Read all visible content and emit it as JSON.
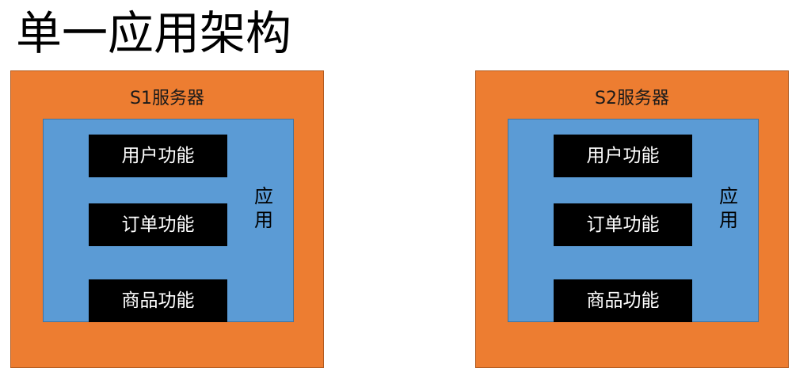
{
  "title": "单一应用架构",
  "servers": [
    {
      "label": "S1服务器",
      "app_label": [
        "应",
        "用"
      ],
      "functions": [
        "用户功能",
        "订单功能",
        "商品功能"
      ]
    },
    {
      "label": "S2服务器",
      "app_label": [
        "应",
        "用"
      ],
      "functions": [
        "用户功能",
        "订单功能",
        "商品功能"
      ]
    }
  ],
  "colors": {
    "server_fill": "#ed7d31",
    "app_fill": "#5b9bd5",
    "function_fill": "#000000",
    "function_text": "#ffffff"
  }
}
